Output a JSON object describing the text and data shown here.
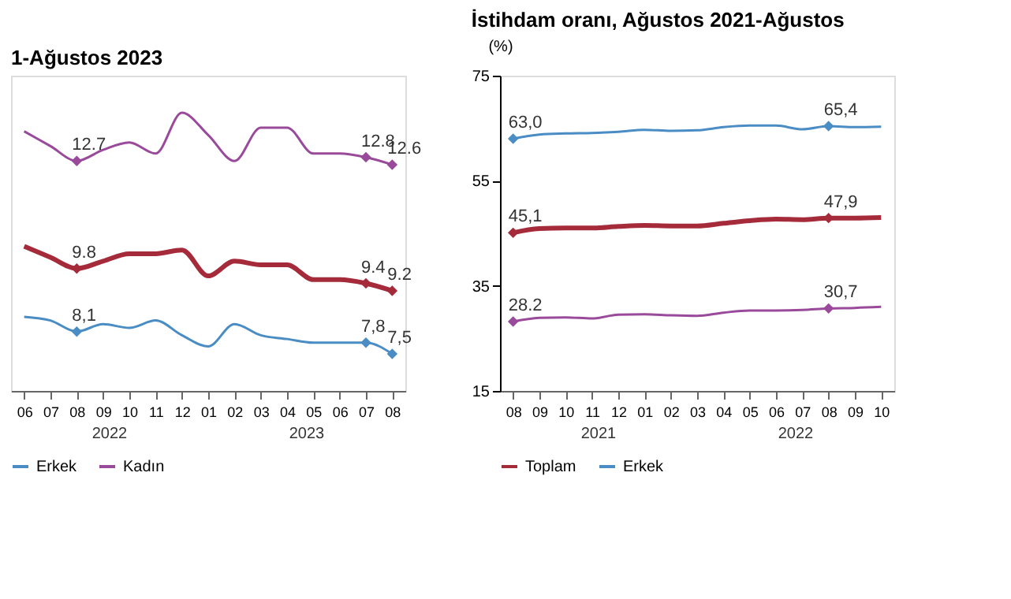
{
  "chart_data": [
    {
      "type": "line",
      "title": "1-Ağustos 2023",
      "categories": [
        "06",
        "07",
        "08",
        "09",
        "10",
        "11",
        "12",
        "01",
        "02",
        "03",
        "04",
        "05",
        "06",
        "07",
        "08"
      ],
      "ylim": [
        6.5,
        15
      ],
      "tick_labels": "x",
      "legend": "bottom",
      "line_style": "solid",
      "annotations": [
        "2022",
        "2023"
      ],
      "series": [
        {
          "color": "#a52a3a",
          "values": [
            10.4,
            10.1,
            9.8,
            10.0,
            10.2,
            10.2,
            10.3,
            9.6,
            10.0,
            9.9,
            9.9,
            9.5,
            9.5,
            9.4,
            9.2
          ],
          "value_labels": [
            null,
            null,
            "9.8",
            null,
            null,
            null,
            null,
            null,
            null,
            null,
            null,
            null,
            null,
            "9.4",
            "9.2"
          ]
        },
        {
          "name": "Erkek",
          "color": "#4a8cc4",
          "values": [
            8.5,
            8.4,
            8.1,
            8.3,
            8.2,
            8.4,
            8.0,
            7.7,
            8.3,
            8.0,
            7.9,
            7.8,
            7.8,
            7.8,
            7.5
          ],
          "value_labels": [
            null,
            null,
            "8,1",
            null,
            null,
            null,
            null,
            null,
            null,
            null,
            null,
            null,
            null,
            "7,8",
            "7,5"
          ]
        },
        {
          "name": "Kadın",
          "color": "#9a4a9a",
          "values": [
            13.5,
            13.1,
            12.7,
            13.0,
            13.2,
            12.9,
            14.0,
            13.4,
            12.7,
            13.6,
            13.6,
            12.9,
            12.9,
            12.8,
            12.6
          ],
          "value_labels": [
            null,
            null,
            "12.7",
            null,
            null,
            null,
            null,
            null,
            null,
            null,
            null,
            null,
            null,
            "12.8",
            "12.6"
          ]
        }
      ]
    },
    {
      "type": "line",
      "title": "İstihdam oranı, Ağustos 2021-Ağustos",
      "ylabel": "(%)",
      "categories": [
        "08",
        "09",
        "10",
        "11",
        "12",
        "01",
        "02",
        "03",
        "04",
        "05",
        "06",
        "07",
        "08",
        "09",
        "10"
      ],
      "ylim": [
        15,
        75
      ],
      "yticks": [
        15,
        35,
        55,
        75
      ],
      "legend": "bottom",
      "line_style": "solid",
      "annotations": [
        "2021",
        "2022"
      ],
      "series": [
        {
          "name": "Toplam",
          "color": "#a52a3a",
          "values": [
            45.1,
            45.9,
            46.0,
            46.0,
            46.3,
            46.5,
            46.4,
            46.4,
            46.9,
            47.4,
            47.7,
            47.6,
            47.9,
            47.9,
            48.0
          ],
          "value_labels": [
            "45,1",
            null,
            null,
            null,
            null,
            null,
            null,
            null,
            null,
            null,
            null,
            null,
            "47,9",
            null,
            null
          ]
        },
        {
          "name": "Erkek",
          "color": "#4a8cc4",
          "values": [
            63.0,
            63.8,
            64.0,
            64.1,
            64.3,
            64.7,
            64.5,
            64.6,
            65.2,
            65.5,
            65.5,
            64.8,
            65.4,
            65.2,
            65.3
          ],
          "value_labels": [
            "63,0",
            null,
            null,
            null,
            null,
            null,
            null,
            null,
            null,
            null,
            null,
            null,
            "65,4",
            null,
            null
          ]
        },
        {
          "color": "#9a4a9a",
          "values": [
            28.2,
            28.9,
            29.0,
            28.8,
            29.5,
            29.6,
            29.4,
            29.3,
            29.9,
            30.3,
            30.3,
            30.4,
            30.7,
            30.8,
            31.0
          ],
          "value_labels": [
            "28.2",
            null,
            null,
            null,
            null,
            null,
            null,
            null,
            null,
            null,
            null,
            null,
            "30,7",
            null,
            null
          ]
        }
      ]
    }
  ]
}
